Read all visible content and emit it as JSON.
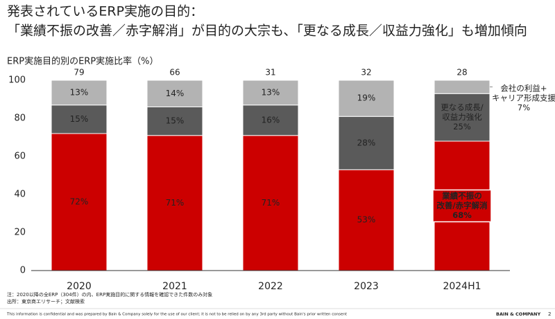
{
  "chart_data": {
    "type": "stacked_bar",
    "title": [
      "発表されているERP実施の目的：",
      "「業績不振の改善／赤字解消」が目的の大宗も、「更なる成長／収益力強化」も増加傾向"
    ],
    "ylabel": "ERP実施目的別のERP実施比率（%）",
    "categories": [
      "2020",
      "2021",
      "2022",
      "2023",
      "2024H1"
    ],
    "counts": [
      79,
      66,
      31,
      32,
      28
    ],
    "series": [
      {
        "name": [
          "業績不振の",
          "改善/赤字解消"
        ],
        "color": "#cc0000",
        "values": [
          72,
          71,
          71,
          53,
          68
        ],
        "value_labels": [
          "72%",
          "71%",
          "71%",
          "53%",
          "68%"
        ]
      },
      {
        "name": [
          "更なる成長/",
          "収益力強化"
        ],
        "color": "#5a5a5a",
        "values": [
          15,
          15,
          16,
          28,
          25
        ],
        "value_labels": [
          "15%",
          "15%",
          "16%",
          "28%",
          "25%"
        ]
      },
      {
        "name": [
          "会社の利益+",
          "キャリア形成支援"
        ],
        "color": "#b3b3b3",
        "values": [
          13,
          14,
          13,
          19,
          7
        ],
        "value_labels": [
          "13%",
          "14%",
          "13%",
          "19%",
          "7%"
        ]
      }
    ],
    "ylim": [
      0,
      100
    ],
    "yticks": [
      0,
      20,
      40,
      60,
      80,
      100
    ],
    "notes": [
      "注：2020以降の全ERP（304件）の内、ERP実施目的に関する情報を確認できた件数のみ対象",
      "出所：東京商エリサーチ；文献検索"
    ],
    "footer": "This information is confidential and was prepared by Bain & Company solely for the use of our client; it is not to be relied on by any 3rd party without Bain's prior written consent",
    "brand": "BAIN & COMPANY",
    "page": "2"
  }
}
